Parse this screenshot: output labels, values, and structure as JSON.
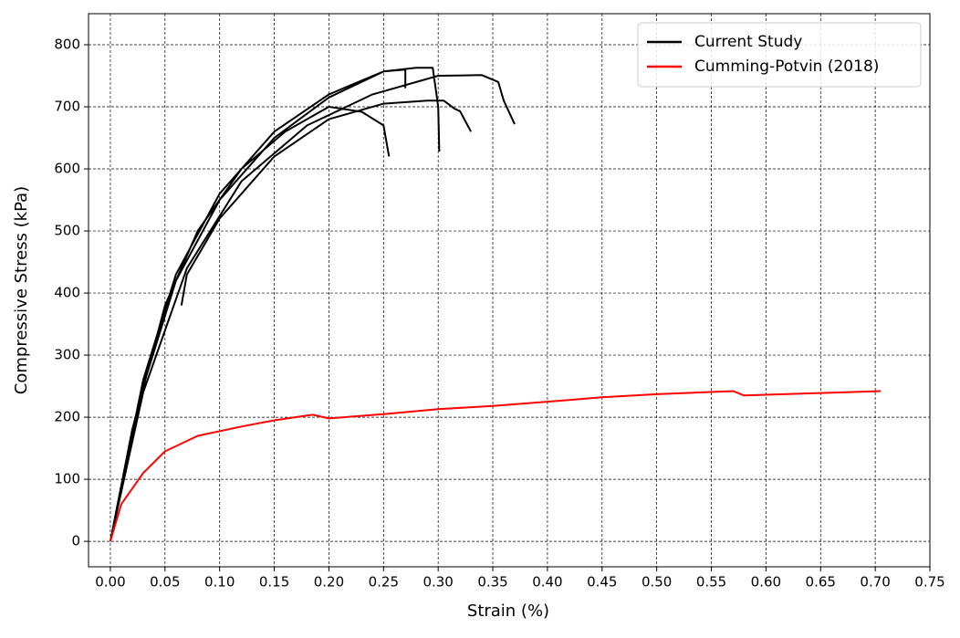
{
  "chart_data": {
    "type": "line",
    "xlabel": "Strain (%)",
    "ylabel": "Compressive Stress (kPa)",
    "xlim": [
      -0.02,
      0.75
    ],
    "ylim": [
      -41,
      850
    ],
    "xticks": [
      {
        "value": 0,
        "label": "0.00"
      },
      {
        "value": 0.05,
        "label": "0.05"
      },
      {
        "value": 0.1,
        "label": "0.10"
      },
      {
        "value": 0.15,
        "label": "0.15"
      },
      {
        "value": 0.2,
        "label": "0.20"
      },
      {
        "value": 0.25,
        "label": "0.25"
      },
      {
        "value": 0.3,
        "label": "0.30"
      },
      {
        "value": 0.35,
        "label": "0.35"
      },
      {
        "value": 0.4,
        "label": "0.40"
      },
      {
        "value": 0.45,
        "label": "0.45"
      },
      {
        "value": 0.5,
        "label": "0.50"
      },
      {
        "value": 0.55,
        "label": "0.55"
      },
      {
        "value": 0.6,
        "label": "0.60"
      },
      {
        "value": 0.65,
        "label": "0.65"
      },
      {
        "value": 0.7,
        "label": "0.70"
      },
      {
        "value": 0.75,
        "label": "0.75"
      }
    ],
    "yticks": [
      0,
      100,
      200,
      300,
      400,
      500,
      600,
      700,
      800
    ],
    "grid": true,
    "legend": "upper right",
    "series": [
      {
        "name": "Current Study",
        "color": "#000000",
        "x": [
          0,
          0.02,
          0.05,
          0.08,
          0.12,
          0.16,
          0.2,
          0.23,
          0.25,
          0.255,
          null,
          0,
          0.03,
          0.06,
          0.1,
          0.15,
          0.2,
          0.25,
          0.28,
          0.295,
          0.3,
          0.301,
          null,
          0.065,
          0.07,
          0.1,
          0.15,
          0.2,
          0.25,
          0.29,
          0.305,
          0.315,
          0.32,
          0.33,
          null,
          0,
          0.03,
          0.06,
          0.1,
          0.15,
          0.2,
          0.25,
          0.27,
          0.27,
          null,
          0,
          0.03,
          0.07,
          0.12,
          0.18,
          0.24,
          0.3,
          0.34,
          0.355,
          0.36,
          0.37
        ],
        "values": [
          0,
          180,
          380,
          500,
          600,
          660,
          700,
          692,
          670,
          620,
          null,
          0,
          250,
          420,
          550,
          650,
          715,
          757,
          763,
          763,
          700,
          628,
          null,
          380,
          430,
          520,
          620,
          680,
          705,
          710,
          710,
          697,
          693,
          660,
          null,
          0,
          260,
          430,
          560,
          660,
          720,
          757,
          760,
          730,
          null,
          0,
          240,
          440,
          580,
          670,
          720,
          750,
          751,
          740,
          710,
          672
        ]
      },
      {
        "name": "Cumming-Potvin (2018)",
        "color": "#ff0000",
        "x": [
          0,
          0.01,
          0.03,
          0.05,
          0.08,
          0.12,
          0.15,
          0.185,
          0.2,
          0.25,
          0.3,
          0.35,
          0.4,
          0.45,
          0.5,
          0.57,
          0.58,
          0.65,
          0.705
        ],
        "values": [
          0,
          60,
          110,
          145,
          170,
          185,
          195,
          204,
          198,
          205,
          213,
          218,
          225,
          232,
          237,
          242,
          235,
          239,
          242
        ]
      }
    ]
  }
}
